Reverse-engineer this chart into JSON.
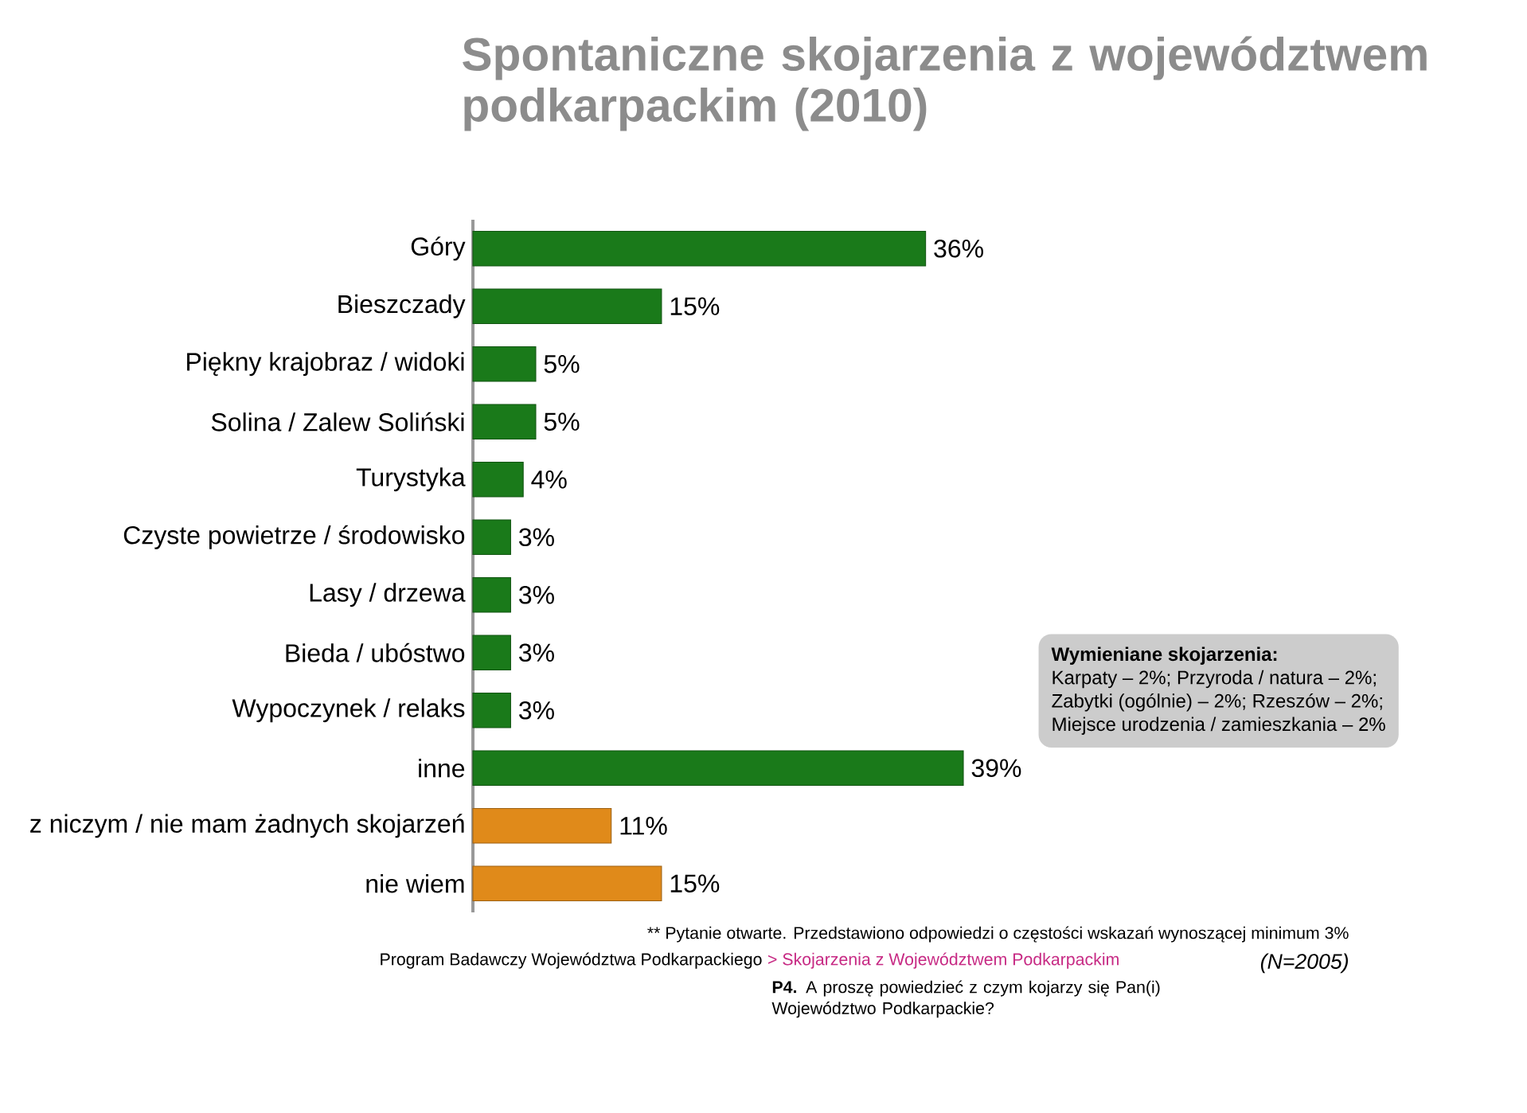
{
  "chart_data": {
    "type": "bar",
    "orientation": "horizontal",
    "title": "Spontaniczne skojarzenia z województwem podkarpackim (2010)",
    "categories": [
      "Góry",
      "Bieszczady",
      "Piękny krajobraz / widoki",
      "Solina / Zalew Soliński",
      "Turystyka",
      "Czyste powietrze / środowisko",
      "Lasy / drzewa",
      "Bieda / ubóstwo",
      "Wypoczynek / relaks",
      "inne",
      "z niczym / nie mam żadnych skojarzeń",
      "nie wiem"
    ],
    "values": [
      36,
      15,
      5,
      5,
      4,
      3,
      3,
      3,
      3,
      39,
      11,
      15
    ],
    "value_labels": [
      "36%",
      "15%",
      "5%",
      "5%",
      "4%",
      "3%",
      "3%",
      "3%",
      "3%",
      "39%",
      "11%",
      "15%"
    ],
    "colors": [
      "#1a7a1a",
      "#1a7a1a",
      "#1a7a1a",
      "#1a7a1a",
      "#1a7a1a",
      "#1a7a1a",
      "#1a7a1a",
      "#1a7a1a",
      "#1a7a1a",
      "#1a7a1a",
      "#e08a1a",
      "#e08a1a"
    ],
    "annotations": [
      "Wymieniane skojarzenia:",
      "Karpaty – 2%; Przyroda / natura – 2%;",
      "Zabytki (ogólnie) – 2%; Rzeszów – 2%;",
      "Miejsce urodzenia / zamieszkania – 2%",
      "** Pytanie otwarte. Przedstawiono odpowiedzi o częstości wskazań wynoszącej minimum 3%",
      "Program Badawczy Województwa Podkarpackiego",
      "> Skojarzenia z Województwem Podkarpackim",
      "(N=2005)",
      "**P4.** A proszę powiedzieć z czym kojarzy się Pan(i) Województwo Podkarpackie?"
    ]
  }
}
